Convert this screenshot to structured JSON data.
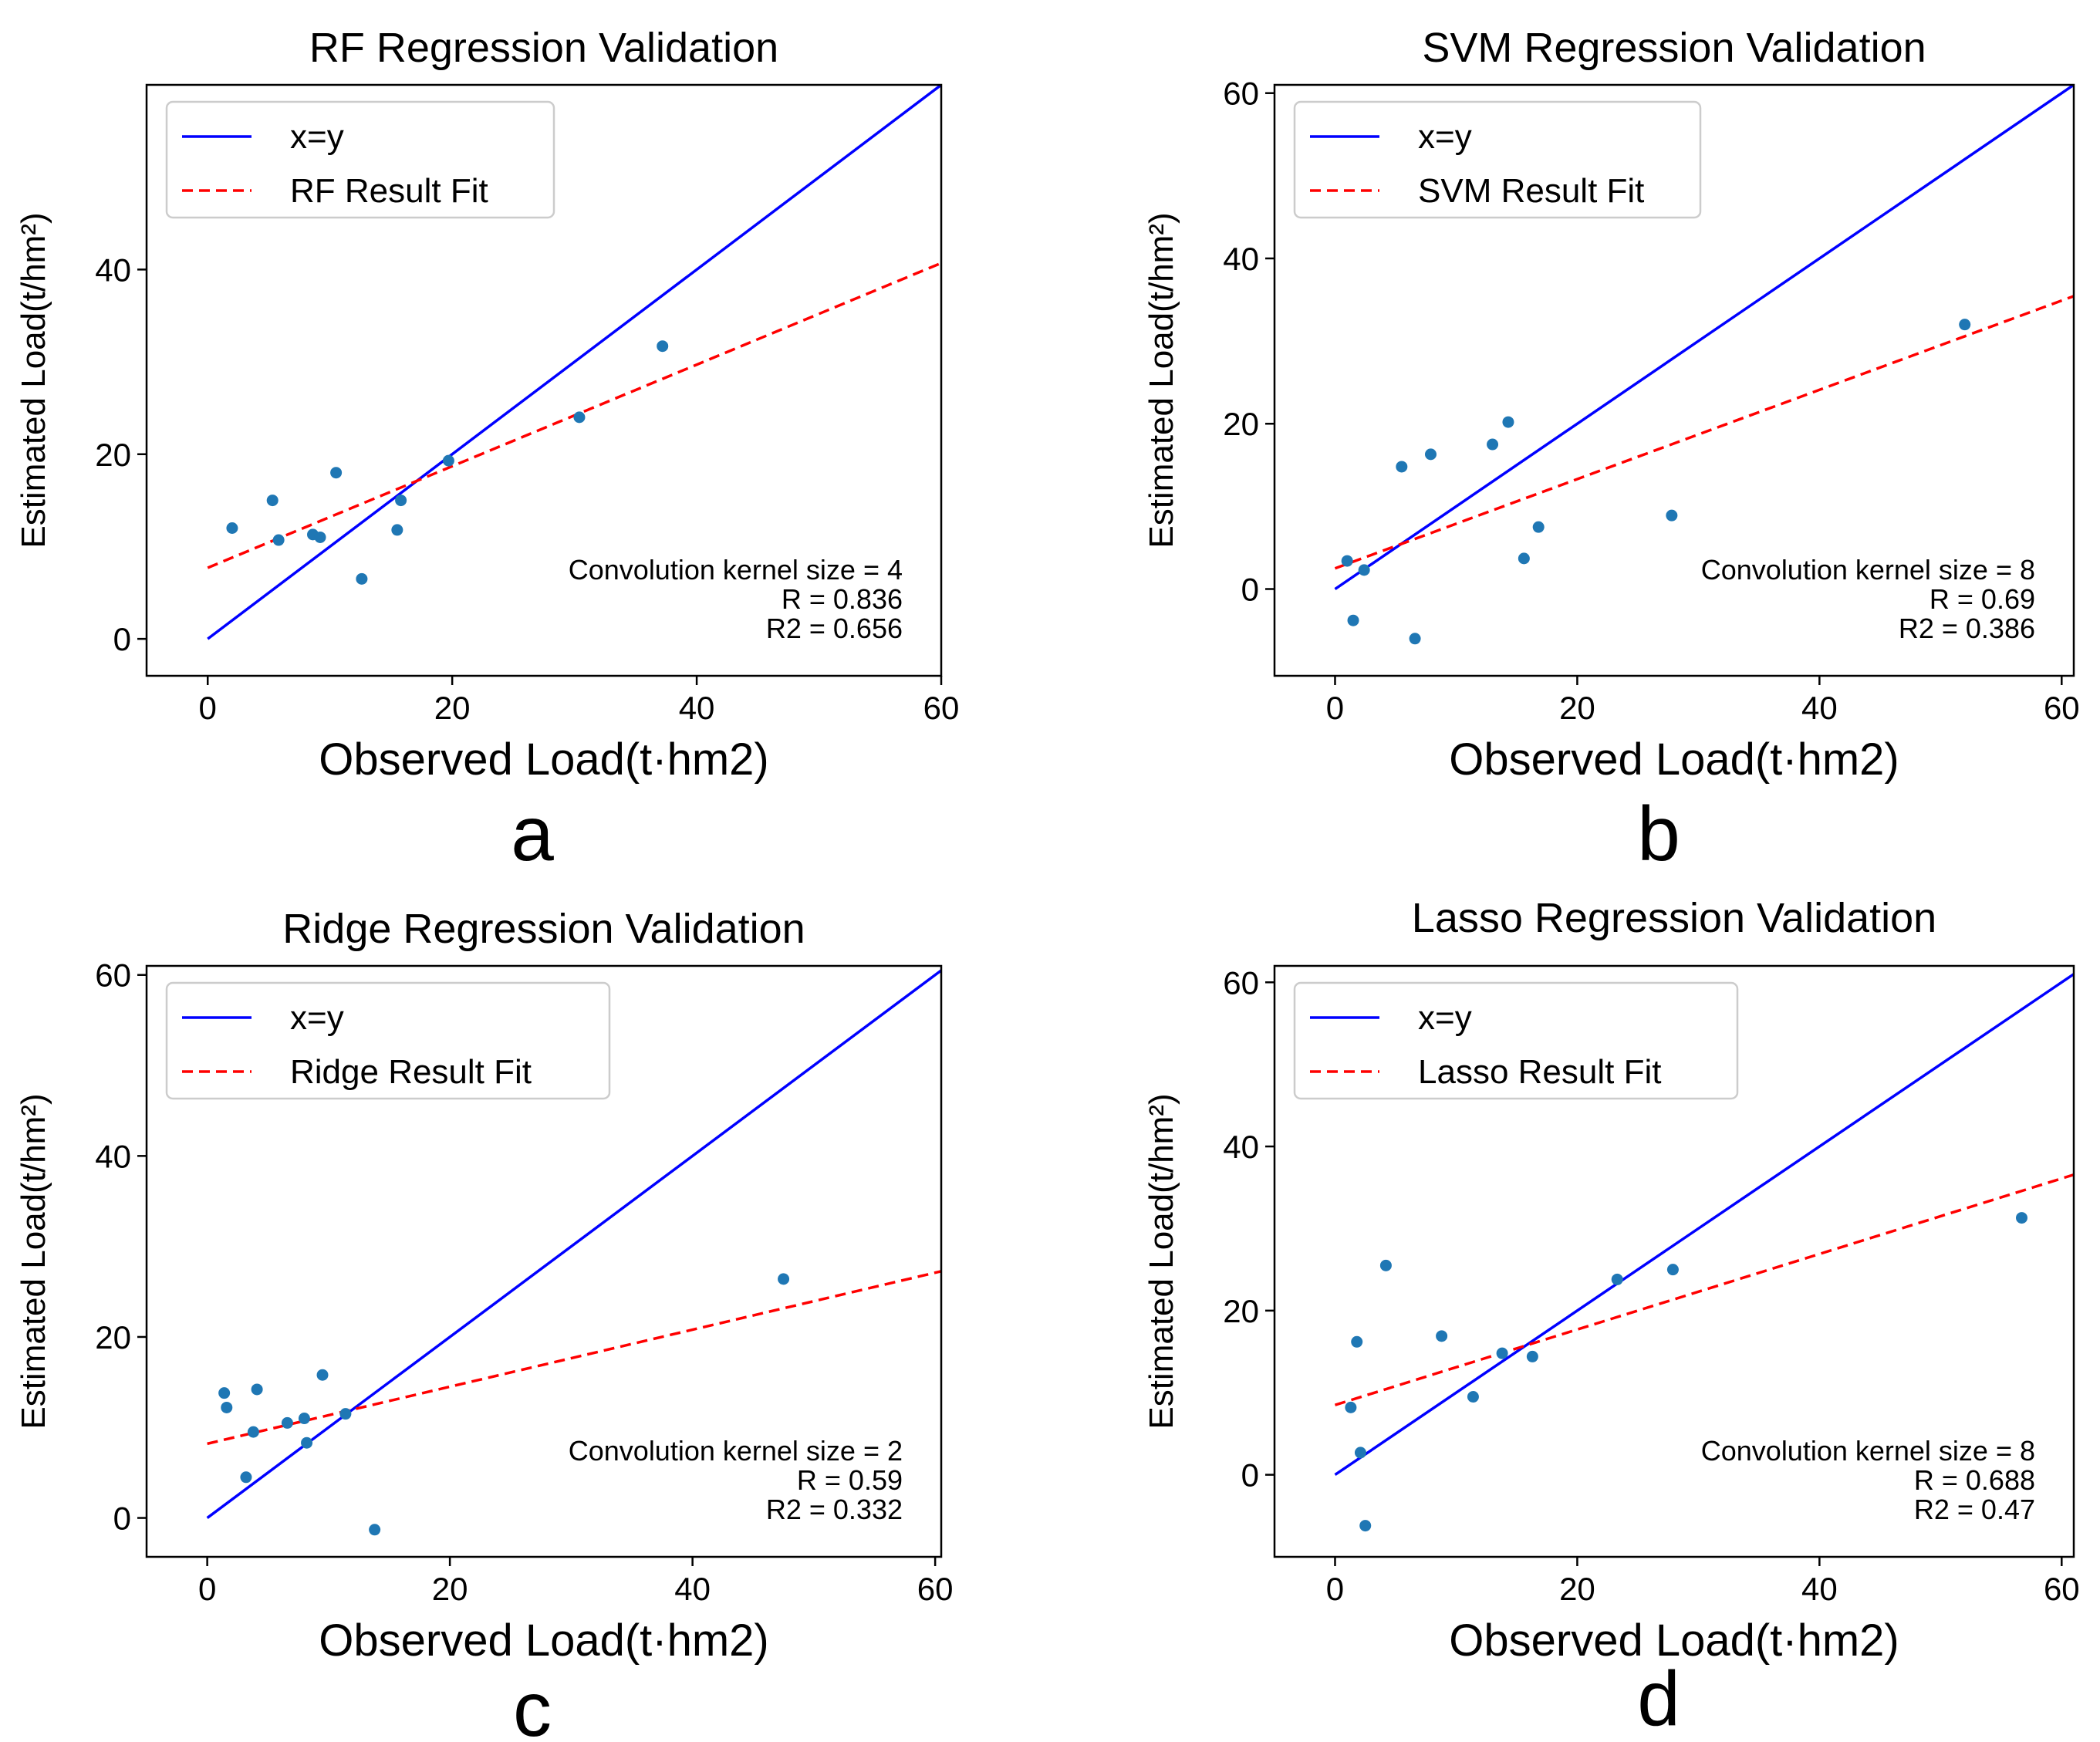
{
  "colors": {
    "identity_line": "#0000ff",
    "fit_line": "#ff0000",
    "points": "#1f77b4",
    "axes": "#000000"
  },
  "chart_data": [
    {
      "type": "scatter",
      "panel_label": "a",
      "title": "RF Regression Validation",
      "xlabel": "Observed Load(t·hm2)",
      "ylabel": "Estimated Load(t/hm²)",
      "xlim": [
        -5,
        60
      ],
      "ylim": [
        -4,
        60
      ],
      "xticks": [
        0,
        20,
        40,
        60
      ],
      "yticks": [
        0,
        20,
        40
      ],
      "legend": {
        "placement": "top-left",
        "entries": [
          {
            "label": "x=y",
            "style": "solid-blue"
          },
          {
            "label": "RF Result Fit",
            "style": "dashed-red"
          }
        ]
      },
      "annotation": [
        "Convolution kernel size = 4",
        "R = 0.836",
        "R2 = 0.656"
      ],
      "fit_line": {
        "slope": 0.55,
        "intercept": 7.7
      },
      "points": [
        {
          "x": 2,
          "y": 12
        },
        {
          "x": 5.3,
          "y": 15
        },
        {
          "x": 5.8,
          "y": 10.7
        },
        {
          "x": 8.6,
          "y": 11.3
        },
        {
          "x": 9.2,
          "y": 11
        },
        {
          "x": 10.5,
          "y": 18
        },
        {
          "x": 12.6,
          "y": 6.5
        },
        {
          "x": 15.5,
          "y": 11.8
        },
        {
          "x": 15.8,
          "y": 15
        },
        {
          "x": 19.7,
          "y": 19.3
        },
        {
          "x": 30.4,
          "y": 24
        },
        {
          "x": 37.2,
          "y": 31.7
        }
      ]
    },
    {
      "type": "scatter",
      "panel_label": "b",
      "title": "SVM Regression Validation",
      "xlabel": "Observed Load(t·hm2)",
      "ylabel": "Estimated Load(t/hm²)",
      "xlim": [
        -5,
        61
      ],
      "ylim": [
        -10.5,
        61
      ],
      "xticks": [
        0,
        20,
        40,
        60
      ],
      "yticks": [
        0,
        20,
        40,
        60
      ],
      "legend": {
        "placement": "top-left",
        "entries": [
          {
            "label": "x=y",
            "style": "solid-blue"
          },
          {
            "label": "SVM Result Fit",
            "style": "dashed-red"
          }
        ]
      },
      "annotation": [
        "Convolution kernel size = 8",
        "R = 0.69",
        "R2 = 0.386"
      ],
      "fit_line": {
        "slope": 0.54,
        "intercept": 2.5
      },
      "points": [
        {
          "x": 1,
          "y": 3.4
        },
        {
          "x": 1.5,
          "y": -3.8
        },
        {
          "x": 2.4,
          "y": 2.3
        },
        {
          "x": 5.5,
          "y": 14.8
        },
        {
          "x": 6.6,
          "y": -6
        },
        {
          "x": 7.9,
          "y": 16.3
        },
        {
          "x": 13,
          "y": 17.5
        },
        {
          "x": 14.3,
          "y": 20.2
        },
        {
          "x": 15.6,
          "y": 3.7
        },
        {
          "x": 16.8,
          "y": 7.5
        },
        {
          "x": 27.8,
          "y": 8.9
        },
        {
          "x": 52,
          "y": 32
        }
      ]
    },
    {
      "type": "scatter",
      "panel_label": "c",
      "title": "Ridge Regression Validation",
      "xlabel": "Observed Load(t·hm2)",
      "ylabel": "Estimated Load(t/hm²)",
      "xlim": [
        -5,
        60.5
      ],
      "ylim": [
        -4.3,
        61
      ],
      "xticks": [
        0,
        20,
        40,
        60
      ],
      "yticks": [
        0,
        20,
        40,
        60
      ],
      "legend": {
        "placement": "top-left",
        "entries": [
          {
            "label": "x=y",
            "style": "solid-blue"
          },
          {
            "label": "Ridge Result Fit",
            "style": "dashed-red"
          }
        ]
      },
      "annotation": [
        "Convolution kernel size = 2",
        "R = 0.59",
        "R2 = 0.332"
      ],
      "fit_line": {
        "slope": 0.315,
        "intercept": 8.2
      },
      "points": [
        {
          "x": 1.4,
          "y": 13.8
        },
        {
          "x": 1.6,
          "y": 12.2
        },
        {
          "x": 3.2,
          "y": 4.5
        },
        {
          "x": 3.8,
          "y": 9.5
        },
        {
          "x": 4.1,
          "y": 14.2
        },
        {
          "x": 6.6,
          "y": 10.5
        },
        {
          "x": 8,
          "y": 11
        },
        {
          "x": 8.2,
          "y": 8.3
        },
        {
          "x": 9.5,
          "y": 15.8
        },
        {
          "x": 11.4,
          "y": 11.5
        },
        {
          "x": 13.8,
          "y": -1.3
        },
        {
          "x": 47.5,
          "y": 26.4
        }
      ]
    },
    {
      "type": "scatter",
      "panel_label": "d",
      "title": "Lasso Regression Validation",
      "xlabel": "Observed Load(t·hm2)",
      "ylabel": "Estimated Load(t/hm²)",
      "xlim": [
        -5,
        61
      ],
      "ylim": [
        -10,
        62
      ],
      "xticks": [
        0,
        20,
        40,
        60
      ],
      "yticks": [
        0,
        20,
        40,
        60
      ],
      "legend": {
        "placement": "top-left",
        "entries": [
          {
            "label": "x=y",
            "style": "solid-blue"
          },
          {
            "label": "Lasso Result Fit",
            "style": "dashed-red"
          }
        ]
      },
      "annotation": [
        "Convolution kernel size = 8",
        "R = 0.688",
        "R2 = 0.47"
      ],
      "fit_line": {
        "slope": 0.46,
        "intercept": 8.5
      },
      "points": [
        {
          "x": 1.3,
          "y": 8.2
        },
        {
          "x": 1.8,
          "y": 16.2
        },
        {
          "x": 2.1,
          "y": 2.7
        },
        {
          "x": 2.5,
          "y": -6.2
        },
        {
          "x": 4.2,
          "y": 25.5
        },
        {
          "x": 8.8,
          "y": 16.9
        },
        {
          "x": 11.4,
          "y": 9.5
        },
        {
          "x": 13.8,
          "y": 14.8
        },
        {
          "x": 16.3,
          "y": 14.4
        },
        {
          "x": 23.3,
          "y": 23.8
        },
        {
          "x": 27.9,
          "y": 25
        },
        {
          "x": 56.7,
          "y": 31.3
        }
      ]
    }
  ]
}
